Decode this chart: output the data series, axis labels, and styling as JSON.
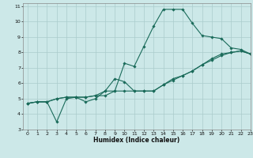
{
  "title": "",
  "xlabel": "Humidex (Indice chaleur)",
  "ylabel": "",
  "bg_color": "#cce8e8",
  "grid_color": "#aacccc",
  "line_color": "#1a6b5a",
  "xlim": [
    -0.5,
    23
  ],
  "ylim": [
    3,
    11.2
  ],
  "xticks": [
    0,
    1,
    2,
    3,
    4,
    5,
    6,
    7,
    8,
    9,
    10,
    11,
    12,
    13,
    14,
    15,
    16,
    17,
    18,
    19,
    20,
    21,
    22,
    23
  ],
  "yticks": [
    3,
    4,
    5,
    6,
    7,
    8,
    9,
    10,
    11
  ],
  "line1_x": [
    0,
    1,
    2,
    3,
    4,
    5,
    6,
    7,
    8,
    9,
    10,
    11,
    12,
    13,
    14,
    15,
    16,
    17,
    18,
    19,
    20,
    21,
    22,
    23
  ],
  "line1_y": [
    4.7,
    4.8,
    4.8,
    3.5,
    5.0,
    5.1,
    4.8,
    5.0,
    5.5,
    6.3,
    6.1,
    5.5,
    5.5,
    5.5,
    5.9,
    6.3,
    6.5,
    6.8,
    7.2,
    7.6,
    7.9,
    8.0,
    8.1,
    7.9
  ],
  "line2_x": [
    0,
    1,
    2,
    3,
    4,
    5,
    6,
    7,
    8,
    9,
    10,
    11,
    12,
    13,
    14,
    15,
    16,
    17,
    18,
    19,
    20,
    21,
    22,
    23
  ],
  "line2_y": [
    4.7,
    4.8,
    4.8,
    5.0,
    5.1,
    5.1,
    5.1,
    5.2,
    5.5,
    5.5,
    7.3,
    7.1,
    8.4,
    9.7,
    10.8,
    10.8,
    10.8,
    9.9,
    9.1,
    9.0,
    8.9,
    8.3,
    8.2,
    7.9
  ],
  "line3_x": [
    0,
    1,
    2,
    3,
    4,
    5,
    6,
    7,
    8,
    9,
    10,
    11,
    12,
    13,
    14,
    15,
    16,
    17,
    18,
    19,
    20,
    21,
    22,
    23
  ],
  "line3_y": [
    4.7,
    4.8,
    4.8,
    5.0,
    5.1,
    5.1,
    5.1,
    5.2,
    5.2,
    5.5,
    5.5,
    5.5,
    5.5,
    5.5,
    5.9,
    6.2,
    6.5,
    6.8,
    7.2,
    7.5,
    7.8,
    8.0,
    8.1,
    7.9
  ]
}
